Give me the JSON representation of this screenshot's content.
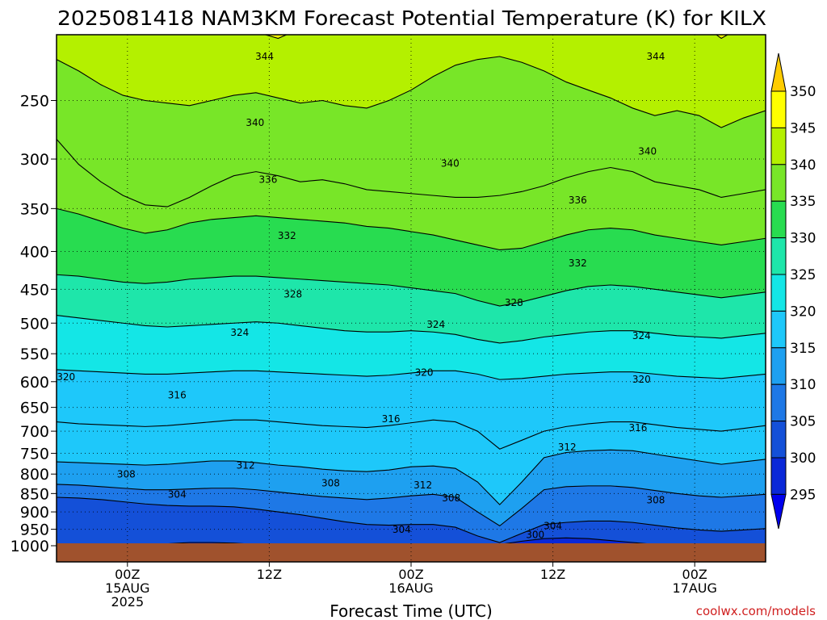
{
  "chart_data": {
    "type": "heatmap",
    "title": "2025081418 NAM3KM Forecast Potential Temperature (K) for KILX",
    "xlabel": "Forecast Time (UTC)",
    "ylabel": "",
    "units": "K",
    "credit": "coolwx.com/models",
    "y_axis": {
      "type": "log-pressure",
      "inverted": true,
      "range": [
        1000,
        200
      ],
      "ticks": [
        250,
        300,
        350,
        400,
        450,
        500,
        550,
        600,
        650,
        700,
        750,
        800,
        850,
        900,
        950,
        1000
      ]
    },
    "x_axis": {
      "range_hours": [
        -6,
        54
      ],
      "ticks": [
        {
          "hour": 0,
          "lines": [
            "00Z",
            "15AUG",
            "2025"
          ]
        },
        {
          "hour": 12,
          "lines": [
            "12Z"
          ]
        },
        {
          "hour": 24,
          "lines": [
            "00Z",
            "16AUG"
          ]
        },
        {
          "hour": 36,
          "lines": [
            "12Z"
          ]
        },
        {
          "hour": 48,
          "lines": [
            "00Z",
            "17AUG"
          ]
        }
      ]
    },
    "grid": true,
    "colorbar": {
      "position": "right",
      "levels": [
        295,
        300,
        305,
        310,
        315,
        320,
        325,
        330,
        335,
        340,
        345,
        350
      ],
      "colors": [
        "#0000ee",
        "#0a28d8",
        "#1450d8",
        "#1e78e6",
        "#1ea0f0",
        "#1ec8fa",
        "#14e6e6",
        "#1ee6aa",
        "#28dc50",
        "#78e628",
        "#b4f000",
        "#ffff00",
        "#ffcc00"
      ]
    },
    "contour_interval": 2,
    "contours": [
      {
        "level": 344,
        "p": [
          182,
          186,
          190,
          192,
          190,
          196,
          200,
          198,
          196,
          202,
          206,
          200,
          196,
          194,
          192,
          190,
          188,
          186,
          184,
          182,
          178,
          176,
          174,
          176,
          178,
          184,
          190,
          194,
          192,
          196,
          206,
          198,
          194
        ]
      },
      {
        "level": 340,
        "p": [
          220,
          228,
          238,
          246,
          250,
          252,
          254,
          250,
          246,
          244,
          248,
          252,
          250,
          254,
          256,
          250,
          242,
          232,
          224,
          220,
          218,
          222,
          228,
          236,
          242,
          248,
          256,
          262,
          258,
          262,
          272,
          264,
          258
        ]
      },
      {
        "level": 336,
        "p": [
          282,
          305,
          322,
          336,
          346,
          348,
          338,
          326,
          316,
          312,
          316,
          322,
          320,
          324,
          330,
          332,
          334,
          336,
          338,
          338,
          336,
          332,
          326,
          318,
          312,
          308,
          312,
          322,
          326,
          330,
          338,
          334,
          330
        ]
      },
      {
        "level": 332,
        "p": [
          350,
          356,
          364,
          372,
          378,
          374,
          366,
          362,
          360,
          358,
          360,
          362,
          364,
          366,
          370,
          372,
          376,
          380,
          386,
          392,
          398,
          396,
          388,
          380,
          374,
          372,
          374,
          380,
          384,
          388,
          392,
          388,
          384
        ]
      },
      {
        "level": 328,
        "p": [
          430,
          432,
          436,
          440,
          442,
          440,
          436,
          434,
          432,
          432,
          434,
          436,
          438,
          440,
          442,
          444,
          448,
          452,
          456,
          466,
          474,
          468,
          460,
          452,
          446,
          444,
          446,
          450,
          454,
          458,
          462,
          458,
          454
        ]
      },
      {
        "level": 324,
        "p": [
          488,
          492,
          496,
          500,
          504,
          506,
          504,
          502,
          500,
          498,
          500,
          504,
          508,
          512,
          514,
          514,
          512,
          514,
          518,
          526,
          532,
          528,
          522,
          518,
          514,
          512,
          512,
          516,
          520,
          522,
          524,
          520,
          516
        ]
      },
      {
        "level": 320,
        "p": [
          578,
          580,
          582,
          584,
          586,
          586,
          584,
          582,
          580,
          580,
          582,
          584,
          586,
          588,
          590,
          588,
          584,
          580,
          580,
          586,
          596,
          594,
          590,
          586,
          584,
          582,
          582,
          586,
          590,
          592,
          594,
          590,
          586
        ]
      },
      {
        "level": 316,
        "p": [
          680,
          684,
          686,
          688,
          690,
          688,
          684,
          680,
          676,
          676,
          680,
          684,
          688,
          690,
          692,
          688,
          682,
          676,
          680,
          700,
          740,
          720,
          700,
          690,
          684,
          680,
          680,
          686,
          692,
          696,
          700,
          694,
          688
        ]
      },
      {
        "level": 312,
        "p": [
          770,
          772,
          774,
          776,
          778,
          776,
          772,
          768,
          768,
          772,
          778,
          782,
          788,
          792,
          794,
          790,
          782,
          780,
          786,
          820,
          880,
          820,
          760,
          748,
          744,
          742,
          744,
          752,
          760,
          768,
          776,
          770,
          764
        ]
      },
      {
        "level": 308,
        "p": [
          826,
          828,
          832,
          836,
          840,
          840,
          838,
          836,
          836,
          840,
          846,
          852,
          858,
          862,
          866,
          862,
          856,
          852,
          860,
          900,
          940,
          890,
          840,
          832,
          830,
          830,
          834,
          842,
          850,
          856,
          860,
          856,
          852
        ]
      },
      {
        "level": 304,
        "p": [
          860,
          862,
          866,
          872,
          878,
          882,
          884,
          884,
          886,
          892,
          900,
          908,
          918,
          928,
          936,
          938,
          936,
          936,
          944,
          970,
          990,
          962,
          936,
          930,
          926,
          926,
          930,
          938,
          946,
          952,
          956,
          952,
          948
        ]
      },
      {
        "level": 300,
        "p": [
          1000,
          1000,
          1000,
          1000,
          998,
          994,
          990,
          990,
          992,
          996,
          1000,
          1000,
          1000,
          1000,
          1000,
          1000,
          1000,
          1000,
          1000,
          1000,
          996,
          986,
          978,
          976,
          978,
          984,
          990,
          996,
          1000,
          1000,
          1000,
          1000,
          1000
        ]
      }
    ],
    "contour_labels": [
      {
        "text": "344",
        "hour": 11.6,
        "p": 218
      },
      {
        "text": "344",
        "hour": 44.7,
        "p": 218
      },
      {
        "text": "340",
        "hour": 10.8,
        "p": 268
      },
      {
        "text": "340",
        "hour": 27.3,
        "p": 304
      },
      {
        "text": "340",
        "hour": 44.0,
        "p": 293
      },
      {
        "text": "336",
        "hour": 11.9,
        "p": 320
      },
      {
        "text": "336",
        "hour": 38.1,
        "p": 341
      },
      {
        "text": "332",
        "hour": 13.5,
        "p": 381
      },
      {
        "text": "332",
        "hour": 38.1,
        "p": 415
      },
      {
        "text": "328",
        "hour": 14.0,
        "p": 457
      },
      {
        "text": "328",
        "hour": 32.7,
        "p": 469
      },
      {
        "text": "324",
        "hour": 9.5,
        "p": 515
      },
      {
        "text": "324",
        "hour": 26.1,
        "p": 502
      },
      {
        "text": "324",
        "hour": 43.5,
        "p": 520
      },
      {
        "text": "320",
        "hour": -5.2,
        "p": 591
      },
      {
        "text": "320",
        "hour": 25.1,
        "p": 583
      },
      {
        "text": "320",
        "hour": 43.5,
        "p": 596
      },
      {
        "text": "316",
        "hour": 4.2,
        "p": 626
      },
      {
        "text": "316",
        "hour": 22.3,
        "p": 674
      },
      {
        "text": "316",
        "hour": 43.2,
        "p": 693
      },
      {
        "text": "312",
        "hour": 10.0,
        "p": 779
      },
      {
        "text": "312",
        "hour": 37.2,
        "p": 736
      },
      {
        "text": "312",
        "hour": 25.0,
        "p": 828
      },
      {
        "text": "308",
        "hour": -0.1,
        "p": 801
      },
      {
        "text": "308",
        "hour": 17.2,
        "p": 823
      },
      {
        "text": "308",
        "hour": 27.4,
        "p": 862
      },
      {
        "text": "308",
        "hour": 44.7,
        "p": 868
      },
      {
        "text": "304",
        "hour": 4.2,
        "p": 853
      },
      {
        "text": "304",
        "hour": 23.2,
        "p": 951
      },
      {
        "text": "304",
        "hour": 36.0,
        "p": 940
      },
      {
        "text": "300",
        "hour": 34.5,
        "p": 967
      }
    ]
  }
}
